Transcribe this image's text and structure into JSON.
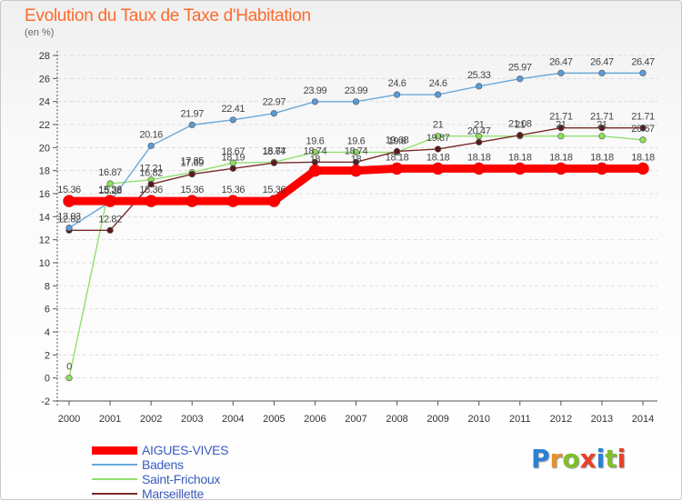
{
  "header": {
    "title": "Evolution du Taux de Taxe d'Habitation",
    "subtitle": "(en %)"
  },
  "logo": {
    "letters": [
      "P",
      "r",
      "o",
      "x",
      "i",
      "t",
      "i"
    ],
    "colors": [
      "#2b7fd6",
      "#e8902a",
      "#7fbf2a",
      "#e8402a",
      "#2b7fd6",
      "#7fbf2a",
      "#e8402a"
    ]
  },
  "chart_data": {
    "type": "line",
    "title": "Evolution du Taux de Taxe d'Habitation",
    "subtitle": "(en %)",
    "xlabel": "",
    "ylabel": "",
    "x": [
      "2000",
      "2001",
      "2002",
      "2003",
      "2004",
      "2005",
      "2006",
      "2007",
      "2008",
      "2009",
      "2010",
      "2011",
      "2012",
      "2013",
      "2014"
    ],
    "ylim": [
      -2,
      28
    ],
    "yticks": [
      -2,
      0,
      2,
      4,
      6,
      8,
      10,
      12,
      14,
      16,
      18,
      20,
      22,
      24,
      26,
      28
    ],
    "grid": "horizontal",
    "legend_position": "bottom-left",
    "series": [
      {
        "name": "AIGUES-VIVES",
        "color": "#ff0000",
        "values": [
          15.36,
          15.36,
          15.36,
          15.36,
          15.36,
          15.36,
          18,
          18,
          18.18,
          18.18,
          18.18,
          18.18,
          18.18,
          18.18,
          18.18
        ],
        "labels": [
          "15.36",
          "15.36",
          "15.36",
          "15.36",
          "15.36",
          "15.36",
          "18",
          "18",
          "18.18",
          "18.18",
          "18.18",
          "18.18",
          "18.18",
          "18.18",
          "18.18"
        ]
      },
      {
        "name": "Badens",
        "color": "#6aa8d8",
        "values": [
          13.03,
          15.28,
          20.16,
          21.97,
          22.41,
          22.97,
          23.99,
          23.99,
          24.6,
          24.6,
          25.33,
          25.97,
          26.47,
          26.47,
          26.47
        ],
        "labels": [
          "13.03",
          "15.28",
          "20.16",
          "21.97",
          "22.41",
          "22.97",
          "23.99",
          "23.99",
          "24.6",
          "24.6",
          "25.33",
          "25.97",
          "26.47",
          "26.47",
          "26.47"
        ]
      },
      {
        "name": "Saint-Frichoux",
        "color": "#90e070",
        "values": [
          0,
          16.87,
          17.21,
          17.85,
          18.67,
          18.74,
          19.6,
          19.6,
          19.6,
          21,
          21,
          21,
          21,
          21,
          20.67
        ],
        "labels": [
          "0",
          "16.87",
          "17.21",
          "17.85",
          "18.67",
          "18.74",
          "19.6",
          "19.6",
          "19.6",
          "21",
          "21",
          "21",
          "21",
          "21",
          "20.67"
        ]
      },
      {
        "name": "Marseillette",
        "color": "#7a2a2a",
        "values": [
          12.82,
          12.82,
          16.82,
          17.69,
          18.19,
          18.67,
          18.74,
          18.74,
          19.68,
          19.87,
          20.47,
          21.08,
          21.71,
          21.71,
          21.71
        ],
        "labels": [
          "12.82",
          "12.82",
          "16.82",
          "17.69",
          "18.19",
          "18.67",
          "18.74",
          "18.74",
          "19.68",
          "19.87",
          "20.47",
          "21.08",
          "21.71",
          "21.71",
          "21.71"
        ]
      }
    ]
  }
}
